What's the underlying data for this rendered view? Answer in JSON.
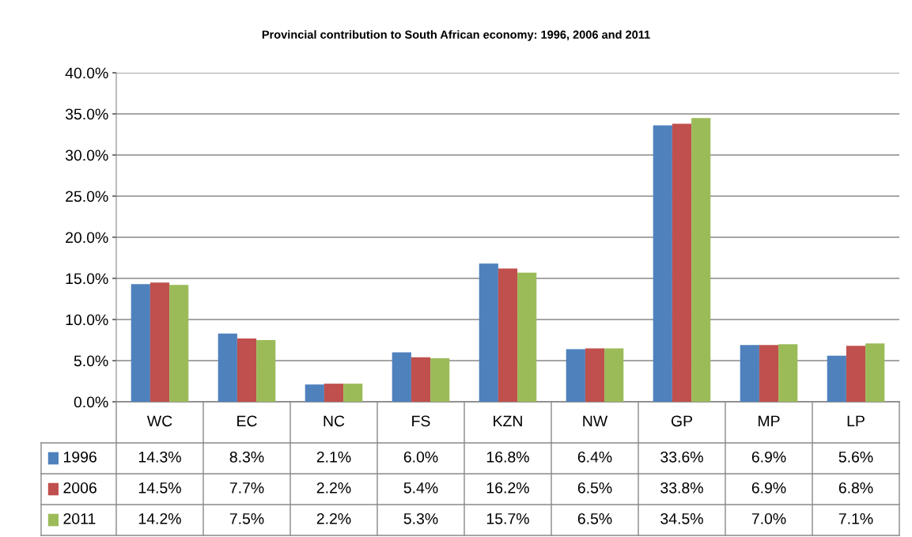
{
  "chart_data": {
    "type": "bar",
    "title": "Provincial contribution to South African economy: 1996, 2006 and 2011",
    "categories": [
      "WC",
      "EC",
      "NC",
      "FS",
      "KZN",
      "NW",
      "GP",
      "MP",
      "LP"
    ],
    "series": [
      {
        "name": "1996",
        "color": "#4f81bd",
        "values": [
          14.3,
          8.3,
          2.1,
          6.0,
          16.8,
          6.4,
          33.6,
          6.9,
          5.6
        ],
        "value_labels": [
          "14.3%",
          "8.3%",
          "2.1%",
          "6.0%",
          "16.8%",
          "6.4%",
          "33.6%",
          "6.9%",
          "5.6%"
        ]
      },
      {
        "name": "2006",
        "color": "#c0504d",
        "values": [
          14.5,
          7.7,
          2.2,
          5.4,
          16.2,
          6.5,
          33.8,
          6.9,
          6.8
        ],
        "value_labels": [
          "14.5%",
          "7.7%",
          "2.2%",
          "5.4%",
          "16.2%",
          "6.5%",
          "33.8%",
          "6.9%",
          "6.8%"
        ]
      },
      {
        "name": "2011",
        "color": "#9bbb59",
        "values": [
          14.2,
          7.5,
          2.2,
          5.3,
          15.7,
          6.5,
          34.5,
          7.0,
          7.1
        ],
        "value_labels": [
          "14.2%",
          "7.5%",
          "2.2%",
          "5.3%",
          "15.7%",
          "6.5%",
          "34.5%",
          "7.0%",
          "7.1%"
        ]
      }
    ],
    "ylim": [
      0,
      40
    ],
    "yticks": [
      {
        "value": 0,
        "label": "0.0%"
      },
      {
        "value": 5,
        "label": "5.0%"
      },
      {
        "value": 10,
        "label": "10.0%"
      },
      {
        "value": 15,
        "label": "15.0%"
      },
      {
        "value": 20,
        "label": "20.0%"
      },
      {
        "value": 25,
        "label": "25.0%"
      },
      {
        "value": 30,
        "label": "30.0%"
      },
      {
        "value": 35,
        "label": "35.0%"
      },
      {
        "value": 40,
        "label": "40.0%"
      }
    ],
    "grid": "y",
    "legend": "bottom"
  }
}
